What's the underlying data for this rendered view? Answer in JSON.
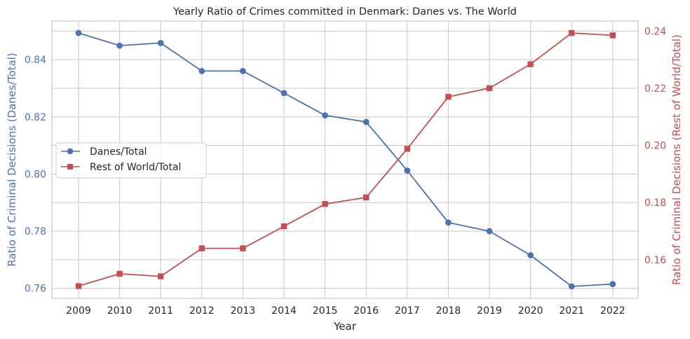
{
  "chart_data": {
    "type": "line",
    "title": "Yearly Ratio of Crimes committed in Denmark: Danes vs. The World",
    "xlabel": "Year",
    "ylabel_left": "Ratio of Criminal Decisions (Danes/Total)",
    "ylabel_right": "Ratio of Criminal Decisions (Rest of World/Total)",
    "categories": [
      "2009",
      "2010",
      "2011",
      "2012",
      "2013",
      "2014",
      "2015",
      "2016",
      "2017",
      "2018",
      "2019",
      "2020",
      "2021",
      "2022"
    ],
    "y_left_ticks": [
      "0.76",
      "0.78",
      "0.80",
      "0.82",
      "0.84"
    ],
    "y_right_ticks": [
      "0.16",
      "0.18",
      "0.20",
      "0.22",
      "0.24"
    ],
    "ylim_left": [
      0.7565,
      0.8535
    ],
    "ylim_right": [
      0.1465,
      0.2435
    ],
    "grid": true,
    "legend_position": "center-left",
    "series": [
      {
        "name": "Danes/Total",
        "axis": "left",
        "marker": "circle",
        "color": "#4c72b0",
        "values": [
          0.8493,
          0.8449,
          0.8458,
          0.836,
          0.836,
          0.8283,
          0.8205,
          0.8182,
          0.8012,
          0.783,
          0.78,
          0.7716,
          0.7607,
          0.7615
        ]
      },
      {
        "name": "Rest of World/Total",
        "axis": "right",
        "marker": "square",
        "color": "#c44e52",
        "values": [
          0.1508,
          0.1551,
          0.1542,
          0.164,
          0.164,
          0.1717,
          0.1795,
          0.1818,
          0.1988,
          0.217,
          0.22,
          0.2284,
          0.2393,
          0.2385
        ]
      }
    ]
  }
}
